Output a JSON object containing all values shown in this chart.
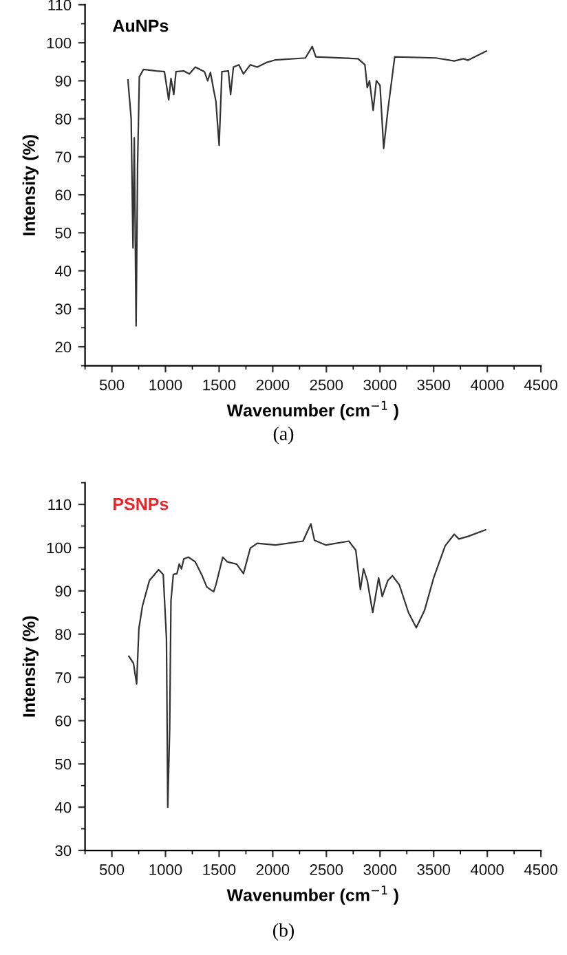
{
  "chart_data": [
    {
      "type": "line",
      "title": "AuNPs",
      "xlabel": "Wavenumber (cm$^{−1}$ )",
      "ylabel": "Intensity (%)",
      "annotations": [
        "(a)"
      ],
      "xlim": [
        250,
        4500
      ],
      "xticks": [
        500,
        1000,
        1500,
        2000,
        2500,
        3000,
        3500,
        4000,
        4500
      ],
      "ylim": [
        15,
        110
      ],
      "yticks": [
        20,
        30,
        40,
        50,
        60,
        70,
        80,
        90,
        100,
        110
      ],
      "grid": false,
      "legend": false,
      "series": [
        {
          "color": "#333333",
          "x": [
            650,
            680,
            697,
            709,
            726,
            740,
            756,
            795,
            915,
            990,
            1030,
            1051,
            1077,
            1098,
            1170,
            1222,
            1278,
            1363,
            1393,
            1419,
            1449,
            1470,
            1500,
            1526,
            1586,
            1607,
            1633,
            1684,
            1727,
            1791,
            1855,
            1940,
            2026,
            2304,
            2368,
            2402,
            2795,
            2859,
            2881,
            2902,
            2936,
            2966,
            3000,
            3034,
            3073,
            3137,
            3522,
            3692,
            3778,
            3820,
            3991
          ],
          "values": [
            90.2,
            80,
            46,
            75,
            25.5,
            68,
            91,
            93,
            92.6,
            92.4,
            85,
            90.6,
            86.4,
            92.4,
            92.6,
            91.8,
            93.6,
            92.4,
            90,
            92.2,
            87.6,
            84.6,
            73,
            92.4,
            92.6,
            86.4,
            93.6,
            94.2,
            91.8,
            94.2,
            93.6,
            94.8,
            95.5,
            96,
            99,
            96.3,
            95.8,
            94.2,
            88.2,
            90,
            82.2,
            90,
            88.8,
            72.2,
            82.2,
            96.3,
            96,
            95.2,
            95.8,
            95.4,
            97.8
          ]
        }
      ]
    },
    {
      "type": "line",
      "title": "PSNPs",
      "xlabel": "Wavenumber (cm$^{−1}$ )",
      "ylabel": "Intensity (%)",
      "annotations": [
        "(b)"
      ],
      "xlim": [
        250,
        4500
      ],
      "xticks": [
        500,
        1000,
        1500,
        2000,
        2500,
        3000,
        3500,
        4000,
        4500
      ],
      "ylim": [
        30,
        115
      ],
      "yticks": [
        30,
        40,
        50,
        60,
        70,
        80,
        90,
        100,
        110
      ],
      "grid": false,
      "legend": false,
      "series": [
        {
          "color": "#333333",
          "x": [
            658,
            701,
            731,
            752,
            786,
            850,
            936,
            979,
            1009,
            1021,
            1039,
            1051,
            1073,
            1107,
            1128,
            1149,
            1171,
            1214,
            1278,
            1342,
            1385,
            1449,
            1470,
            1534,
            1577,
            1663,
            1727,
            1791,
            1855,
            2026,
            2282,
            2355,
            2389,
            2496,
            2710,
            2774,
            2817,
            2846,
            2881,
            2932,
            2987,
            3021,
            3073,
            3116,
            3180,
            3265,
            3338,
            3415,
            3500,
            3607,
            3692,
            3735,
            3820,
            3983
          ],
          "values": [
            74.9,
            73.3,
            68.5,
            81.3,
            86.6,
            92.4,
            94.9,
            93.8,
            79,
            40,
            58,
            87.7,
            93.8,
            94,
            96.2,
            95.1,
            97.4,
            97.8,
            96.7,
            93.5,
            90.9,
            89.8,
            91.4,
            97.8,
            96.7,
            96.2,
            94,
            99.9,
            101,
            100.6,
            101.5,
            105.5,
            101.7,
            100.6,
            101.5,
            99.4,
            90.3,
            95.1,
            92.4,
            85,
            93,
            88.7,
            92.4,
            93.5,
            91.4,
            85,
            81.5,
            85.5,
            93,
            100.4,
            103.1,
            102,
            102.6,
            104.1
          ]
        }
      ]
    }
  ]
}
